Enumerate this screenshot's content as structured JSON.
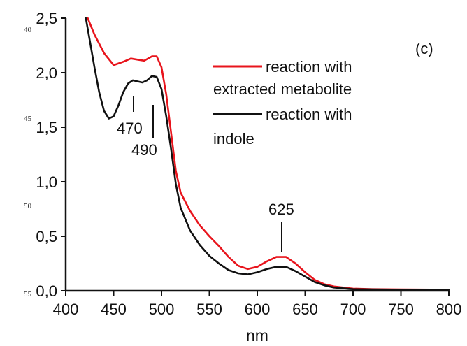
{
  "chart_data": {
    "type": "line",
    "panel_label": "(c)",
    "xlabel": "nm",
    "ylabel": "",
    "xlim": [
      400,
      800
    ],
    "ylim": [
      0.0,
      2.5
    ],
    "x_ticks": [
      400,
      450,
      500,
      550,
      600,
      650,
      700,
      750,
      800
    ],
    "y_ticks": [
      0.0,
      0.5,
      1.0,
      1.5,
      2.0,
      2.5
    ],
    "x_tick_labels": [
      "400",
      "450",
      "500",
      "550",
      "600",
      "650",
      "700",
      "750",
      "800"
    ],
    "y_tick_labels": [
      "0,0",
      "0,5",
      "1,0",
      "1,5",
      "2,0",
      "2,5"
    ],
    "legend_position": "top-right",
    "series": [
      {
        "name": "reaction with extracted metabolite",
        "color": "#e8141c",
        "points": [
          [
            423,
            2.5
          ],
          [
            430,
            2.35
          ],
          [
            440,
            2.18
          ],
          [
            450,
            2.07
          ],
          [
            460,
            2.1
          ],
          [
            468,
            2.13
          ],
          [
            475,
            2.12
          ],
          [
            482,
            2.11
          ],
          [
            490,
            2.15
          ],
          [
            495,
            2.15
          ],
          [
            500,
            2.05
          ],
          [
            505,
            1.8
          ],
          [
            510,
            1.45
          ],
          [
            515,
            1.1
          ],
          [
            520,
            0.9
          ],
          [
            530,
            0.73
          ],
          [
            540,
            0.6
          ],
          [
            550,
            0.5
          ],
          [
            560,
            0.41
          ],
          [
            570,
            0.31
          ],
          [
            580,
            0.23
          ],
          [
            590,
            0.2
          ],
          [
            600,
            0.22
          ],
          [
            610,
            0.27
          ],
          [
            620,
            0.31
          ],
          [
            630,
            0.31
          ],
          [
            640,
            0.25
          ],
          [
            650,
            0.17
          ],
          [
            660,
            0.1
          ],
          [
            670,
            0.06
          ],
          [
            680,
            0.04
          ],
          [
            700,
            0.02
          ],
          [
            720,
            0.015
          ],
          [
            750,
            0.012
          ],
          [
            800,
            0.01
          ]
        ]
      },
      {
        "name": "reaction with indole",
        "color": "#111111",
        "points": [
          [
            421,
            2.5
          ],
          [
            425,
            2.3
          ],
          [
            430,
            2.05
          ],
          [
            435,
            1.82
          ],
          [
            440,
            1.65
          ],
          [
            445,
            1.58
          ],
          [
            450,
            1.6
          ],
          [
            455,
            1.7
          ],
          [
            460,
            1.82
          ],
          [
            465,
            1.9
          ],
          [
            470,
            1.93
          ],
          [
            475,
            1.92
          ],
          [
            480,
            1.91
          ],
          [
            485,
            1.93
          ],
          [
            490,
            1.97
          ],
          [
            495,
            1.96
          ],
          [
            500,
            1.85
          ],
          [
            505,
            1.6
          ],
          [
            510,
            1.3
          ],
          [
            515,
            0.98
          ],
          [
            520,
            0.76
          ],
          [
            530,
            0.55
          ],
          [
            540,
            0.42
          ],
          [
            550,
            0.32
          ],
          [
            560,
            0.25
          ],
          [
            570,
            0.19
          ],
          [
            580,
            0.16
          ],
          [
            590,
            0.15
          ],
          [
            600,
            0.17
          ],
          [
            610,
            0.2
          ],
          [
            620,
            0.22
          ],
          [
            630,
            0.22
          ],
          [
            640,
            0.18
          ],
          [
            650,
            0.13
          ],
          [
            660,
            0.08
          ],
          [
            670,
            0.05
          ],
          [
            680,
            0.03
          ],
          [
            700,
            0.015
          ],
          [
            720,
            0.012
          ],
          [
            750,
            0.01
          ],
          [
            800,
            0.008
          ]
        ]
      }
    ],
    "annotations": [
      {
        "text": "470",
        "x": 470,
        "y": 1.93
      },
      {
        "text": "490",
        "x": 490,
        "y": 1.97
      },
      {
        "text": "625",
        "x": 625,
        "y": 0.31
      }
    ],
    "legend": {
      "entries": [
        {
          "line1": "reaction with",
          "line2": "extracted metabolite",
          "color": "#e8141c"
        },
        {
          "line1": "reaction with",
          "line2": "indole",
          "color": "#111111"
        }
      ]
    },
    "margin_numbers": [
      "40",
      "45",
      "50",
      "55"
    ]
  }
}
